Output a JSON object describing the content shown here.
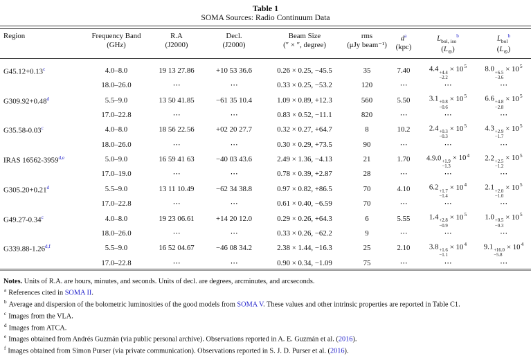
{
  "colors": {
    "link_blue": "#2727cc",
    "rule_gray": "#3c3c3c"
  },
  "table": {
    "title": "Table 1",
    "subtitle": "SOMA Sources: Radio Continuum Data",
    "columns": {
      "region": {
        "l1": "Region"
      },
      "freq": {
        "l1": "Frequency Band",
        "l2": "(GHz)"
      },
      "ra": {
        "l1": "R.A",
        "l2": "(J2000)"
      },
      "dec": {
        "l1": "Decl.",
        "l2": "(J2000)"
      },
      "beam": {
        "l1": "Beam Size",
        "l2": "(″ × ″, degree)"
      },
      "rms": {
        "l1": "rms",
        "l2": "(μJy beam⁻¹)"
      },
      "d": {
        "sym": "d",
        "sup": "a",
        "l2": "(kpc)"
      },
      "liso": {
        "sym": "L",
        "sub": "bol, iso",
        "sup": "b",
        "unit": [
          "(",
          "L",
          "⊙",
          ")"
        ]
      },
      "lbol": {
        "sym": "L",
        "sub": "bol",
        "sup": "b",
        "unit": [
          "(",
          "L",
          "⊙",
          ")"
        ]
      }
    },
    "rows": [
      {
        "region": "G45.12+0.13",
        "rsup": "c",
        "freq": "4.0–8.0",
        "ra": "19 13 27.86",
        "dec": "+10 53 36.6",
        "beam": "0.26 × 0.25, −45.5",
        "rms": "35",
        "d": "7.40",
        "liso": {
          "m": "4.4",
          "up": "+4.4",
          "dn": "−2.2",
          "x": "× 10",
          "e": "5"
        },
        "lbol": {
          "m": "8.0",
          "up": "+6.5",
          "dn": "−3.6",
          "x": "× 10",
          "e": "5"
        }
      },
      {
        "region": "",
        "rsup": "",
        "freq": "18.0–26.0",
        "ra": "⋯",
        "dec": "⋯",
        "beam": "0.33 × 0.25, −53.2",
        "rms": "120",
        "d": "⋯",
        "liso": "⋯",
        "lbol": "⋯"
      },
      {
        "region": "G309.92+0.48",
        "rsup": "d",
        "freq": "5.5–9.0",
        "ra": "13 50 41.85",
        "dec": "−61 35 10.4",
        "beam": "1.09 × 0.89, +12.3",
        "rms": "560",
        "d": "5.50",
        "liso": {
          "m": "3.1",
          "up": "+0.8",
          "dn": "−0.6",
          "x": "× 10",
          "e": "5"
        },
        "lbol": {
          "m": "6.6",
          "up": "+4.8",
          "dn": "−2.8",
          "x": "× 10",
          "e": "5"
        }
      },
      {
        "region": "",
        "rsup": "",
        "freq": "17.0–22.8",
        "ra": "⋯",
        "dec": "⋯",
        "beam": "0.83 × 0.52, −11.1",
        "rms": "820",
        "d": "⋯",
        "liso": "⋯",
        "lbol": "⋯"
      },
      {
        "region": "G35.58-0.03",
        "rsup": "c",
        "freq": "4.0–8.0",
        "ra": "18 56 22.56",
        "dec": "+02 20 27.7",
        "beam": "0.32 × 0.27, +64.7",
        "rms": "8",
        "d": "10.2",
        "liso": {
          "m": "2.4",
          "up": "+0.3",
          "dn": "−0.3",
          "x": "× 10",
          "e": "5"
        },
        "lbol": {
          "m": "4.3",
          "up": "+2.9",
          "dn": "−1.7",
          "x": "× 10",
          "e": "5"
        }
      },
      {
        "region": "",
        "rsup": "",
        "freq": "18.0–26.0",
        "ra": "⋯",
        "dec": "⋯",
        "beam": "0.30 × 0.29, +73.5",
        "rms": "90",
        "d": "⋯",
        "liso": "⋯",
        "lbol": "⋯"
      },
      {
        "region": "IRAS 16562-3959",
        "rsup": "d,e",
        "freq": "5.0–9.0",
        "ra": "16 59 41 63",
        "dec": "−40 03 43.6",
        "beam": "2.49 × 1.36, −4.13",
        "rms": "21",
        "d": "1.70",
        "liso": {
          "m": "4.9.0",
          "up": "+1.9",
          "dn": "−1.3",
          "x": "× 10",
          "e": "4"
        },
        "lbol": {
          "m": "2.2",
          "up": "+2.5",
          "dn": "−1.2",
          "x": "× 10",
          "e": "5"
        }
      },
      {
        "region": "",
        "rsup": "",
        "freq": "17.0–19.0",
        "ra": "⋯",
        "dec": "⋯",
        "beam": "0.78 × 0.39, +2.87",
        "rms": "28",
        "d": "⋯",
        "liso": "⋯",
        "lbol": "⋯"
      },
      {
        "region": "G305.20+0.21",
        "rsup": "d",
        "freq": "5.5–9.0",
        "ra": "13 11 10.49",
        "dec": "−62 34 38.8",
        "beam": "0.97 × 0.82, +86.5",
        "rms": "70",
        "d": "4.10",
        "liso": {
          "m": "6.2",
          "up": "+1.7",
          "dn": "−1.4",
          "x": "× 10",
          "e": "4"
        },
        "lbol": {
          "m": "2.1",
          "up": "+2.0",
          "dn": "−1.0",
          "x": "× 10",
          "e": "5"
        }
      },
      {
        "region": "",
        "rsup": "",
        "freq": "17.0–22.8",
        "ra": "⋯",
        "dec": "⋯",
        "beam": "0.61 × 0.40, −6.59",
        "rms": "70",
        "d": "⋯",
        "liso": "⋯",
        "lbol": "⋯"
      },
      {
        "region": "G49.27-0.34",
        "rsup": "c",
        "freq": "4.0–8.0",
        "ra": "19 23 06.61",
        "dec": "+14 20 12.0",
        "beam": "0.29 × 0.26, +64.3",
        "rms": "6",
        "d": "5.55",
        "liso": {
          "m": "1.4",
          "up": "+2.8",
          "dn": "−0.9",
          "x": "× 10",
          "e": "5"
        },
        "lbol": {
          "m": "1.0",
          "up": "+0.5",
          "dn": "−0.3",
          "x": "× 10",
          "e": "5"
        }
      },
      {
        "region": "",
        "rsup": "",
        "freq": "18.0–26.0",
        "ra": "⋯",
        "dec": "⋯",
        "beam": "0.33 × 0.26, −62.2",
        "rms": "9",
        "d": "⋯",
        "liso": "⋯",
        "lbol": "⋯"
      },
      {
        "region": "G339.88-1.26",
        "rsup": "d,f",
        "freq": "5.5–9.0",
        "ra": "16 52 04.67",
        "dec": "−46 08 34.2",
        "beam": "2.38 × 1.44, −16.3",
        "rms": "25",
        "d": "2.10",
        "liso": {
          "m": "3.8",
          "up": "+1.6",
          "dn": "−1.1",
          "x": "× 10",
          "e": "4"
        },
        "lbol": {
          "m": "9.1",
          "up": "+16.0",
          "dn": "−5.8",
          "x": "× 10",
          "e": "4"
        }
      },
      {
        "region": "",
        "rsup": "",
        "freq": "17.0–22.8",
        "ra": "⋯",
        "dec": "⋯",
        "beam": "0.90 × 0.34, −1.09",
        "rms": "75",
        "d": "⋯",
        "liso": "⋯",
        "lbol": "⋯"
      }
    ]
  },
  "notes": {
    "label": "Notes.",
    "text": " Units of R.A. are hours, minutes, and seconds. Units of decl. are degrees, arcminutes, and arcseconds.",
    "fn": [
      {
        "mark": "a",
        "segs": [
          {
            "t": "References cited in "
          },
          {
            "t": "SOMA II",
            "link": true
          },
          {
            "t": "."
          }
        ]
      },
      {
        "mark": "b",
        "segs": [
          {
            "t": "Average and dispersion of the bolometric luminosities of the good models from "
          },
          {
            "t": "SOMA V",
            "link": true
          },
          {
            "t": ". These values and other intrinsic properties are reported in Table C1."
          }
        ]
      },
      {
        "mark": "c",
        "segs": [
          {
            "t": "Images from the VLA."
          }
        ]
      },
      {
        "mark": "d",
        "segs": [
          {
            "t": "Images from ATCA."
          }
        ]
      },
      {
        "mark": "e",
        "segs": [
          {
            "t": "Images obtained from Andrés Guzmán (via public personal archive). Observations reported in A. E. Guzmán et al. ("
          },
          {
            "t": "2016",
            "link": true
          },
          {
            "t": ")."
          }
        ]
      },
      {
        "mark": "f",
        "segs": [
          {
            "t": "Images obtained from Simon Purser (via private communication). Observations reported in S. J. D. Purser et al. ("
          },
          {
            "t": "2016",
            "link": true
          },
          {
            "t": ")."
          }
        ]
      }
    ]
  }
}
